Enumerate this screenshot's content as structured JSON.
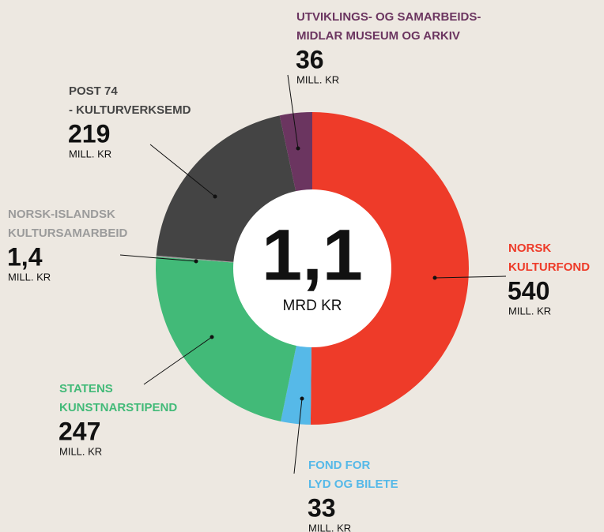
{
  "chart_data": {
    "type": "donut",
    "categories": [
      [
        "NORSK",
        "KULTURFOND"
      ],
      [
        "FOND FOR",
        "LYD OG BILETE"
      ],
      [
        "STATENS",
        "KUNSTNARSTIPEND"
      ],
      [
        "NORSK-ISLANDSK",
        "KULTURSAMARBEID"
      ],
      [
        "POST 74",
        "- KULTURVERKSEMD"
      ],
      [
        "UTVIKLINGS- OG SAMARBEIDS-",
        "MIDLAR MUSEUM OG ARKIV"
      ]
    ],
    "values": [
      540,
      33,
      247,
      1.4,
      219,
      36
    ],
    "value_labels": [
      "540",
      "33",
      "247",
      "1,4",
      "219",
      "36"
    ],
    "colors": [
      "#ee3b29",
      "#56b9e8",
      "#42ba78",
      "#9b9b9b",
      "#444444",
      "#6b3560"
    ],
    "unit": "MILL. KR",
    "total_label": "1,1",
    "total_unit": "MRD KR"
  }
}
